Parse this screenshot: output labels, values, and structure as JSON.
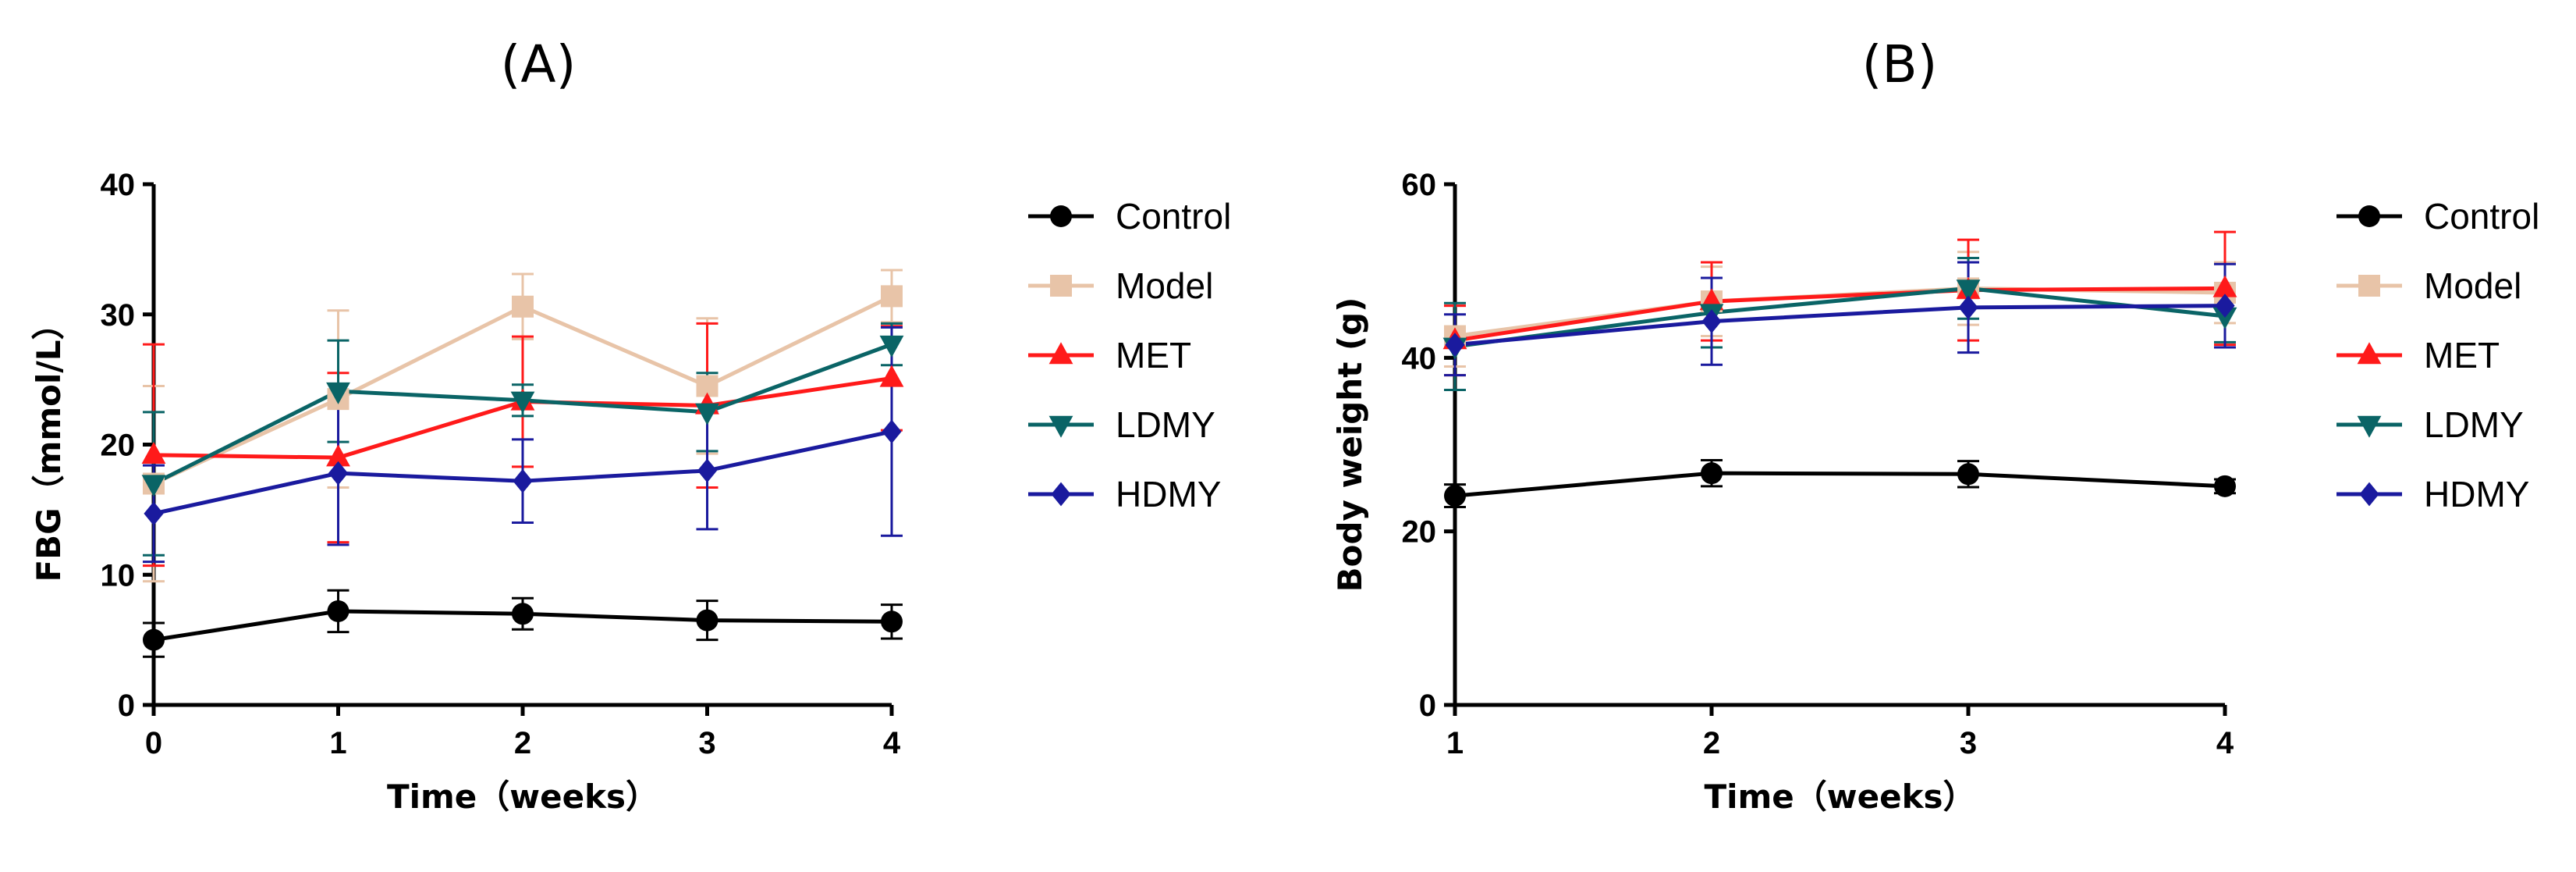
{
  "chart_data": [
    {
      "type": "line",
      "title": "(A)",
      "xlabel": "Time（weeks）",
      "ylabel": "FBG（mmol/L）",
      "x": [
        0,
        1,
        2,
        3,
        4
      ],
      "x_ticks": [
        "0",
        "1",
        "2",
        "3",
        "4"
      ],
      "xlim": [
        0,
        4
      ],
      "ylim": [
        0,
        40
      ],
      "y_ticks": [
        "0",
        "10",
        "20",
        "30",
        "40"
      ],
      "error_bars": true,
      "legend": "right",
      "series": [
        {
          "name": "Control",
          "color": "#000000",
          "marker": "circle",
          "values": [
            5.0,
            7.2,
            7.0,
            6.5,
            6.4
          ],
          "errors": [
            1.3,
            1.6,
            1.2,
            1.5,
            1.3
          ]
        },
        {
          "name": "Model",
          "color": "#E8C4A8",
          "marker": "square",
          "values": [
            17.0,
            23.5,
            30.6,
            24.5,
            31.4
          ],
          "errors": [
            7.5,
            6.8,
            2.5,
            5.2,
            2.0
          ]
        },
        {
          "name": "MET",
          "color": "#FF1A1A",
          "marker": "triangle-up",
          "values": [
            19.2,
            19.0,
            23.3,
            23.0,
            25.1
          ],
          "errors": [
            8.5,
            6.5,
            5.0,
            6.3,
            4.0
          ]
        },
        {
          "name": "LDMY",
          "color": "#0A6466",
          "marker": "triangle-down",
          "values": [
            17.0,
            24.1,
            23.4,
            22.5,
            27.7
          ],
          "errors": [
            5.5,
            3.9,
            1.2,
            3.0,
            1.6
          ]
        },
        {
          "name": "HDMY",
          "color": "#1A1A9E",
          "marker": "diamond",
          "values": [
            14.7,
            17.8,
            17.2,
            18.0,
            21.0
          ],
          "errors": [
            3.7,
            5.5,
            3.2,
            4.5,
            8.0
          ]
        }
      ]
    },
    {
      "type": "line",
      "title": "(B)",
      "xlabel": "Time（weeks）",
      "ylabel": "Body weight (g)",
      "x": [
        1,
        2,
        3,
        4
      ],
      "x_ticks": [
        "1",
        "2",
        "3",
        "4"
      ],
      "xlim": [
        1,
        4
      ],
      "ylim": [
        0,
        60
      ],
      "y_ticks": [
        "0",
        "20",
        "40",
        "60"
      ],
      "error_bars": true,
      "legend": "right",
      "series": [
        {
          "name": "Control",
          "color": "#000000",
          "marker": "circle",
          "values": [
            24.1,
            26.7,
            26.6,
            25.2
          ],
          "errors": [
            1.3,
            1.5,
            1.5,
            0.8
          ]
        },
        {
          "name": "Model",
          "color": "#E8C4A8",
          "marker": "square",
          "values": [
            42.5,
            46.5,
            48.0,
            47.5
          ],
          "errors": [
            3.5,
            4.0,
            4.2,
            3.5
          ]
        },
        {
          "name": "MET",
          "color": "#FF1A1A",
          "marker": "triangle-up",
          "values": [
            42.0,
            46.5,
            47.8,
            48.0
          ],
          "errors": [
            4.0,
            4.5,
            5.8,
            6.5
          ]
        },
        {
          "name": "LDMY",
          "color": "#0A6466",
          "marker": "triangle-down",
          "values": [
            41.3,
            45.2,
            48.0,
            44.8
          ],
          "errors": [
            5.0,
            4.0,
            3.5,
            3.0
          ]
        },
        {
          "name": "HDMY",
          "color": "#1A1A9E",
          "marker": "diamond",
          "values": [
            41.5,
            44.2,
            45.8,
            46.0
          ],
          "errors": [
            3.5,
            5.0,
            5.2,
            4.8
          ]
        }
      ]
    }
  ]
}
